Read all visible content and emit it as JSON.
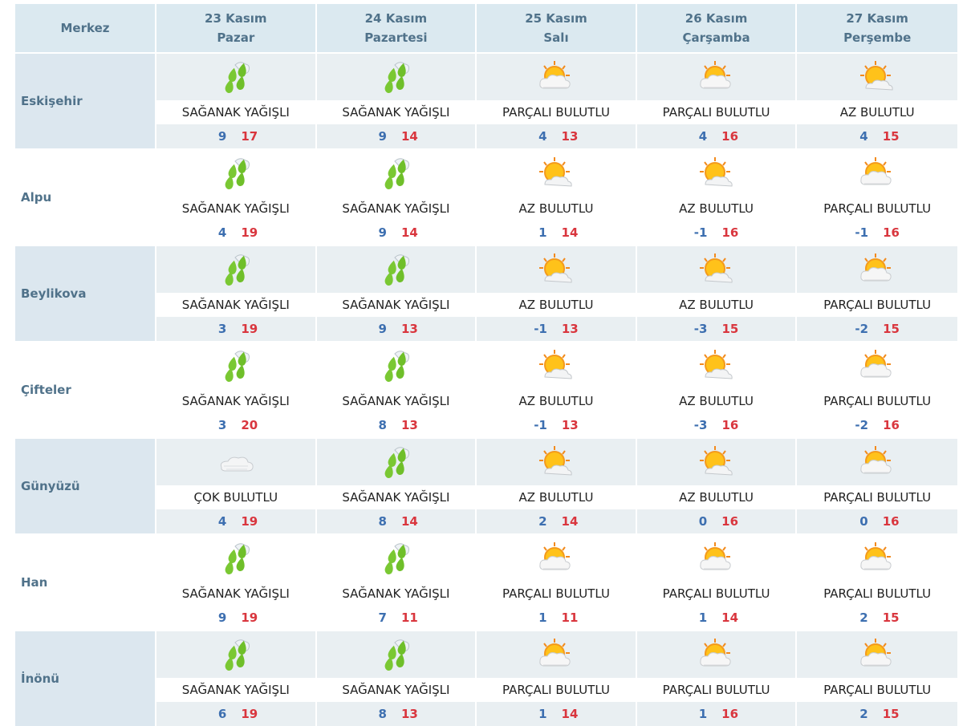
{
  "header": {
    "city_col": "Merkez",
    "days": [
      {
        "date": "23 Kasım",
        "weekday": "Pazar"
      },
      {
        "date": "24 Kasım",
        "weekday": "Pazartesi"
      },
      {
        "date": "25 Kasım",
        "weekday": "Salı"
      },
      {
        "date": "26 Kasım",
        "weekday": "Çarşamba"
      },
      {
        "date": "27 Kasım",
        "weekday": "Perşembe"
      }
    ]
  },
  "rows": [
    {
      "city": "Eskişehir",
      "days": [
        {
          "icon": "rain-icon",
          "desc": "SAĞANAK YAĞIŞLI",
          "min": "9",
          "max": "17"
        },
        {
          "icon": "rain-icon",
          "desc": "SAĞANAK YAĞIŞLI",
          "min": "9",
          "max": "14"
        },
        {
          "icon": "partly-cloudy-icon",
          "desc": "PARÇALI BULUTLU",
          "min": "4",
          "max": "13"
        },
        {
          "icon": "partly-cloudy-icon",
          "desc": "PARÇALI BULUTLU",
          "min": "4",
          "max": "16"
        },
        {
          "icon": "few-clouds-icon",
          "desc": "AZ BULUTLU",
          "min": "4",
          "max": "15"
        }
      ]
    },
    {
      "city": "Alpu",
      "days": [
        {
          "icon": "rain-icon",
          "desc": "SAĞANAK YAĞIŞLI",
          "min": "4",
          "max": "19"
        },
        {
          "icon": "rain-icon",
          "desc": "SAĞANAK YAĞIŞLI",
          "min": "9",
          "max": "14"
        },
        {
          "icon": "few-clouds-icon",
          "desc": "AZ BULUTLU",
          "min": "1",
          "max": "14"
        },
        {
          "icon": "few-clouds-icon",
          "desc": "AZ BULUTLU",
          "min": "-1",
          "max": "16"
        },
        {
          "icon": "partly-cloudy-icon",
          "desc": "PARÇALI BULUTLU",
          "min": "-1",
          "max": "16"
        }
      ]
    },
    {
      "city": "Beylikova",
      "days": [
        {
          "icon": "rain-icon",
          "desc": "SAĞANAK YAĞIŞLI",
          "min": "3",
          "max": "19"
        },
        {
          "icon": "rain-icon",
          "desc": "SAĞANAK YAĞIŞLI",
          "min": "9",
          "max": "13"
        },
        {
          "icon": "few-clouds-icon",
          "desc": "AZ BULUTLU",
          "min": "-1",
          "max": "13"
        },
        {
          "icon": "few-clouds-icon",
          "desc": "AZ BULUTLU",
          "min": "-3",
          "max": "15"
        },
        {
          "icon": "partly-cloudy-icon",
          "desc": "PARÇALI BULUTLU",
          "min": "-2",
          "max": "15"
        }
      ]
    },
    {
      "city": "Çifteler",
      "days": [
        {
          "icon": "rain-icon",
          "desc": "SAĞANAK YAĞIŞLI",
          "min": "3",
          "max": "20"
        },
        {
          "icon": "rain-icon",
          "desc": "SAĞANAK YAĞIŞLI",
          "min": "8",
          "max": "13"
        },
        {
          "icon": "few-clouds-icon",
          "desc": "AZ BULUTLU",
          "min": "-1",
          "max": "13"
        },
        {
          "icon": "few-clouds-icon",
          "desc": "AZ BULUTLU",
          "min": "-3",
          "max": "16"
        },
        {
          "icon": "partly-cloudy-icon",
          "desc": "PARÇALI BULUTLU",
          "min": "-2",
          "max": "16"
        }
      ]
    },
    {
      "city": "Günyüzü",
      "days": [
        {
          "icon": "cloudy-icon",
          "desc": "ÇOK BULUTLU",
          "min": "4",
          "max": "19"
        },
        {
          "icon": "rain-icon",
          "desc": "SAĞANAK YAĞIŞLI",
          "min": "8",
          "max": "14"
        },
        {
          "icon": "few-clouds-icon",
          "desc": "AZ BULUTLU",
          "min": "2",
          "max": "14"
        },
        {
          "icon": "few-clouds-icon",
          "desc": "AZ BULUTLU",
          "min": "0",
          "max": "16"
        },
        {
          "icon": "partly-cloudy-icon",
          "desc": "PARÇALI BULUTLU",
          "min": "0",
          "max": "16"
        }
      ]
    },
    {
      "city": "Han",
      "days": [
        {
          "icon": "rain-icon",
          "desc": "SAĞANAK YAĞIŞLI",
          "min": "9",
          "max": "19"
        },
        {
          "icon": "rain-icon",
          "desc": "SAĞANAK YAĞIŞLI",
          "min": "7",
          "max": "11"
        },
        {
          "icon": "partly-cloudy-icon",
          "desc": "PARÇALI BULUTLU",
          "min": "1",
          "max": "11"
        },
        {
          "icon": "partly-cloudy-icon",
          "desc": "PARÇALI BULUTLU",
          "min": "1",
          "max": "14"
        },
        {
          "icon": "partly-cloudy-icon",
          "desc": "PARÇALI BULUTLU",
          "min": "2",
          "max": "15"
        }
      ]
    },
    {
      "city": "İnönü",
      "days": [
        {
          "icon": "rain-icon",
          "desc": "SAĞANAK YAĞIŞLI",
          "min": "6",
          "max": "19"
        },
        {
          "icon": "rain-icon",
          "desc": "SAĞANAK YAĞIŞLI",
          "min": "8",
          "max": "13"
        },
        {
          "icon": "partly-cloudy-icon",
          "desc": "PARÇALI BULUTLU",
          "min": "1",
          "max": "14"
        },
        {
          "icon": "partly-cloudy-icon",
          "desc": "PARÇALI BULUTLU",
          "min": "1",
          "max": "16"
        },
        {
          "icon": "partly-cloudy-icon",
          "desc": "PARÇALI BULUTLU",
          "min": "2",
          "max": "15"
        }
      ]
    }
  ],
  "colors": {
    "header_bg": "#dbe9f0",
    "header_text": "#50728a",
    "city_bg": "#dce7ef",
    "min_temp": "#3d6fb0",
    "max_temp": "#d9363e"
  }
}
